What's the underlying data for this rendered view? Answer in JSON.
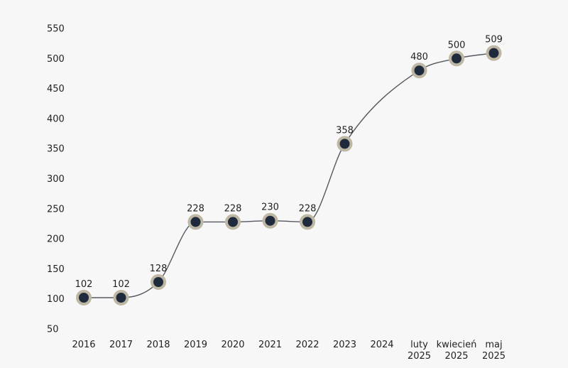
{
  "chart_data": {
    "type": "line",
    "categories": [
      "2016",
      "2017",
      "2018",
      "2019",
      "2020",
      "2021",
      "2022",
      "2023",
      "2024",
      "luty 2025",
      "kwiecień 2025",
      "maj 2025"
    ],
    "category_lines": [
      [
        "2016"
      ],
      [
        "2017"
      ],
      [
        "2018"
      ],
      [
        "2019"
      ],
      [
        "2020"
      ],
      [
        "2021"
      ],
      [
        "2022"
      ],
      [
        "2023"
      ],
      [
        "2024"
      ],
      [
        "luty",
        "2025"
      ],
      [
        "kwiecień",
        "2025"
      ],
      [
        "maj",
        "2025"
      ]
    ],
    "values": [
      102,
      102,
      128,
      228,
      228,
      230,
      228,
      358,
      null,
      480,
      500,
      509
    ],
    "data_labels": [
      "102",
      "102",
      "128",
      "228",
      "228",
      "230",
      "228",
      "358",
      "",
      "480",
      "500",
      "509"
    ],
    "y_ticks": [
      50,
      100,
      150,
      200,
      250,
      300,
      350,
      400,
      450,
      500,
      550
    ],
    "ylim": [
      50,
      550
    ],
    "grid": false,
    "legend": "none",
    "title": "",
    "xlabel": "",
    "ylabel": "",
    "colors": {
      "line": "#55585f",
      "marker_fill": "#1f2a3c",
      "marker_ring": "#bdb7a4",
      "background": "#f7f7f7",
      "text": "#222222"
    }
  }
}
